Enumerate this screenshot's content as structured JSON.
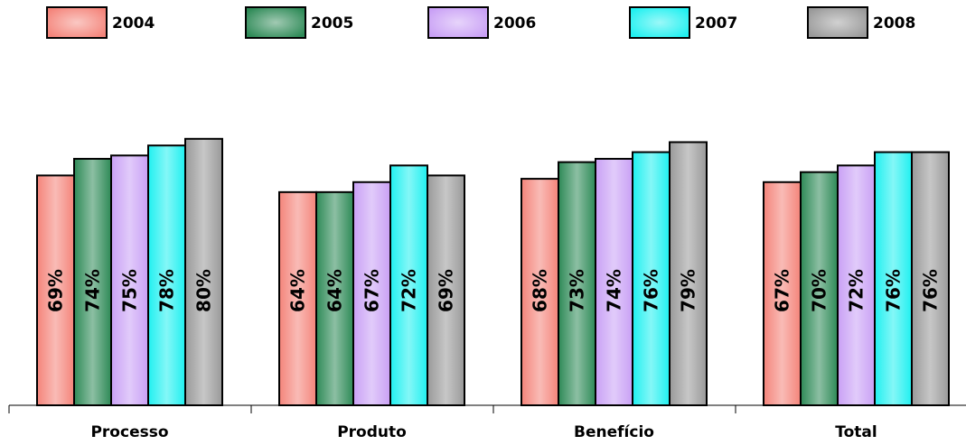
{
  "chart_data": {
    "type": "bar",
    "categories": [
      "Processo",
      "Produto",
      "Benefício",
      "Total"
    ],
    "series": [
      {
        "name": "2004",
        "values": [
          69,
          64,
          68,
          67
        ],
        "labels": [
          "69%",
          "64%",
          "68%",
          "67%"
        ]
      },
      {
        "name": "2005",
        "values": [
          74,
          64,
          73,
          70
        ],
        "labels": [
          "74%",
          "64%",
          "73%",
          "70%"
        ]
      },
      {
        "name": "2006",
        "values": [
          75,
          67,
          74,
          72
        ],
        "labels": [
          "75%",
          "67%",
          "74%",
          "72%"
        ]
      },
      {
        "name": "2007",
        "values": [
          78,
          72,
          76,
          76
        ],
        "labels": [
          "78%",
          "72%",
          "76%",
          "76%"
        ]
      },
      {
        "name": "2008",
        "values": [
          80,
          69,
          79,
          76
        ],
        "labels": [
          "80%",
          "69%",
          "79%",
          "76%"
        ]
      }
    ],
    "colors": [
      "#f4847a",
      "#2e8a57",
      "#c9a0f5",
      "#20f0f0",
      "#999999"
    ],
    "ylim": [
      0,
      100
    ],
    "legend_position": "top",
    "grid": false
  }
}
